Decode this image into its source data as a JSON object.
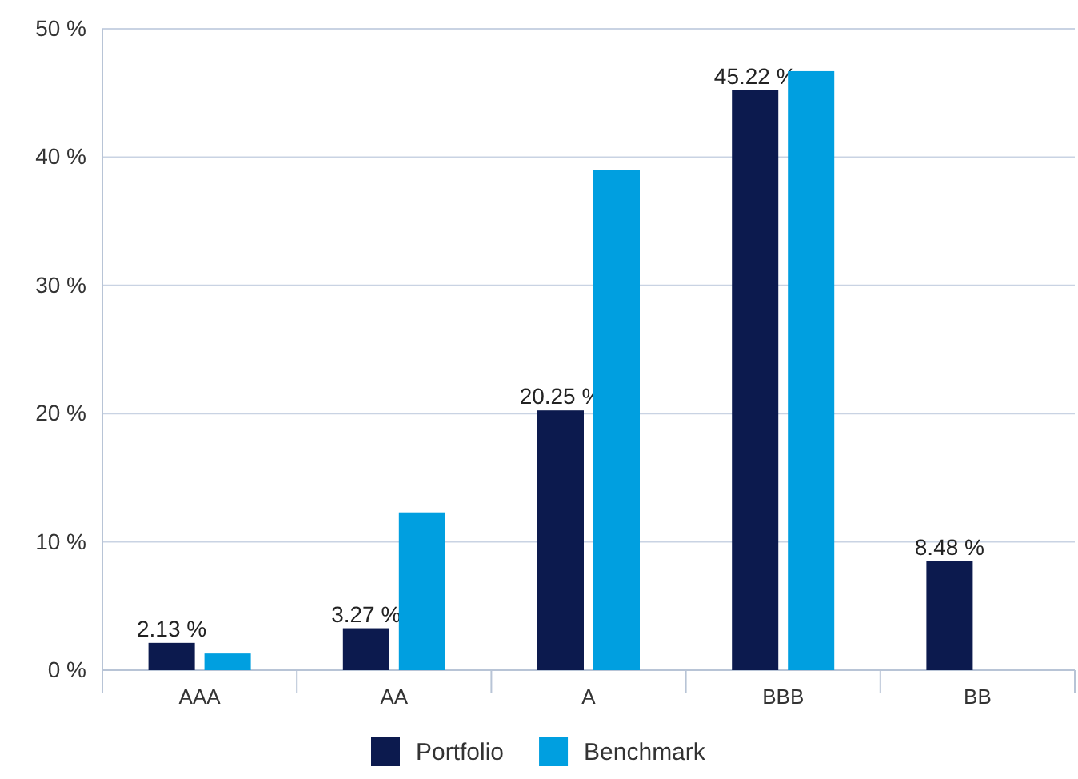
{
  "chart_data": {
    "type": "bar",
    "categories": [
      "AAA",
      "AA",
      "A",
      "BBB",
      "BB"
    ],
    "series": [
      {
        "name": "Portfolio",
        "color": "#0c1a4e",
        "values": [
          2.13,
          3.27,
          20.25,
          45.22,
          8.48
        ],
        "value_labels": [
          "2.13 %",
          "3.27 %",
          "20.25 %",
          "45.22 %",
          "8.48 %"
        ]
      },
      {
        "name": "Benchmark",
        "color": "#009fe0",
        "values": [
          1.3,
          12.3,
          39.0,
          46.7,
          null
        ]
      }
    ],
    "ylim": [
      0,
      50
    ],
    "yticks": [
      {
        "value": 0,
        "label": "0 %"
      },
      {
        "value": 10,
        "label": "10 %"
      },
      {
        "value": 20,
        "label": "20 %"
      },
      {
        "value": 30,
        "label": "30 %"
      },
      {
        "value": 40,
        "label": "40 %"
      },
      {
        "value": 50,
        "label": "50 %"
      }
    ],
    "grid": "y",
    "legend": "bottom"
  }
}
